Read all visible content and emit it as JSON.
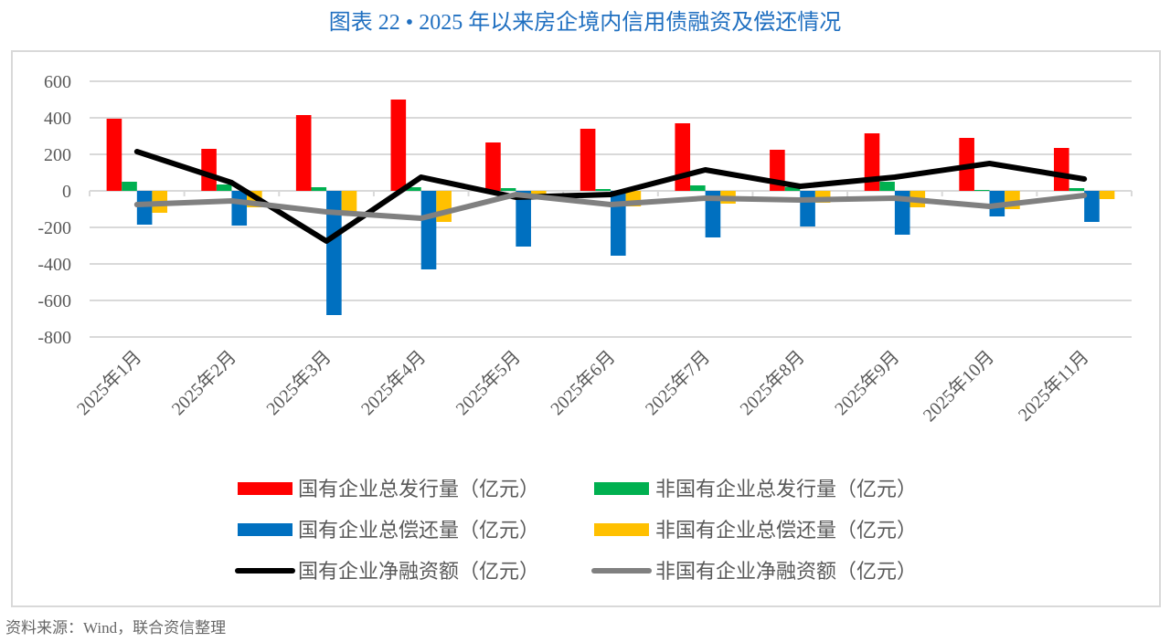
{
  "title": "图表 22 • 2025 年以来房企境内信用债融资及偿还情况",
  "source": "资料来源：Wind，联合资信整理",
  "chart_data": {
    "type": "bar",
    "title": "图表 22 • 2025 年以来房企境内信用债融资及偿还情况",
    "categories": [
      "2025年1月",
      "2025年2月",
      "2025年3月",
      "2025年4月",
      "2025年5月",
      "2025年6月",
      "2025年7月",
      "2025年8月",
      "2025年9月",
      "2025年10月",
      "2025年11月"
    ],
    "ylim": [
      -800,
      600
    ],
    "yticks": [
      600,
      400,
      200,
      0,
      -200,
      -400,
      -600,
      -800
    ],
    "grid": true,
    "legend_position": "bottom",
    "series": [
      {
        "name": "国有企业总发行量（亿元）",
        "kind": "bar",
        "color": "#ff0000",
        "values": [
          395,
          230,
          415,
          500,
          265,
          340,
          370,
          225,
          315,
          290,
          235
        ]
      },
      {
        "name": "非国有企业总发行量（亿元）",
        "kind": "bar",
        "color": "#00b050",
        "values": [
          50,
          35,
          20,
          20,
          15,
          10,
          30,
          20,
          50,
          5,
          15
        ]
      },
      {
        "name": "国有企业总偿还量（亿元）",
        "kind": "bar",
        "color": "#0070c0",
        "values": [
          -185,
          -190,
          -680,
          -430,
          -305,
          -355,
          -255,
          -195,
          -240,
          -140,
          -170
        ]
      },
      {
        "name": "非国有企业总偿还量（亿元）",
        "kind": "bar",
        "color": "#ffc000",
        "values": [
          -120,
          -90,
          -115,
          -170,
          -25,
          -85,
          -70,
          -65,
          -90,
          -100,
          -45
        ]
      },
      {
        "name": "国有企业净融资额（亿元）",
        "kind": "line",
        "color": "#000000",
        "values": [
          215,
          45,
          -275,
          75,
          -35,
          -20,
          115,
          25,
          75,
          150,
          65
        ]
      },
      {
        "name": "非国有企业净融资额（亿元）",
        "kind": "line",
        "color": "#808080",
        "values": [
          -75,
          -55,
          -115,
          -150,
          -20,
          -75,
          -40,
          -50,
          -40,
          -85,
          -25
        ]
      }
    ]
  }
}
